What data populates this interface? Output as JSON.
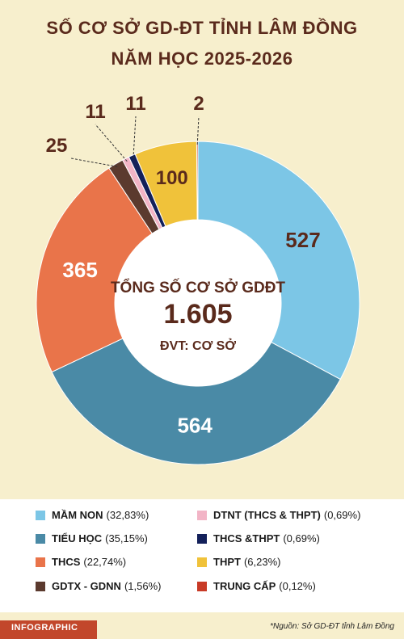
{
  "header": {
    "title_line1": "SỐ CƠ SỞ GD-ĐT TỈNH LÂM ĐỒNG",
    "title_line2": "NĂM HỌC 2025-2026"
  },
  "center": {
    "label": "TỔNG SỐ CƠ SỞ GDĐT",
    "total": "1.605",
    "unit": "ĐVT: CƠ SỞ"
  },
  "chart_data": {
    "type": "pie",
    "donut": true,
    "total": 1605,
    "slices": [
      {
        "name": "MẦM NON",
        "value": 527,
        "pct_label": "(32,83%)",
        "color": "#7cc6e6",
        "label_color": "#5a2a1c"
      },
      {
        "name": "TIỂU HỌC",
        "value": 564,
        "pct_label": "(35,15%)",
        "color": "#4a8aa6",
        "label_color": "#ffffff"
      },
      {
        "name": "THCS",
        "value": 365,
        "pct_label": "(22,74%)",
        "color": "#e9744a",
        "label_color": "#ffffff"
      },
      {
        "name": "GDTX - GDNN",
        "value": 25,
        "pct_label": "(1,56%)",
        "color": "#5b3a2e",
        "label_color": "#5a2a1c"
      },
      {
        "name": "DTNT (THCS & THPT)",
        "value": 11,
        "pct_label": "(0,69%)",
        "color": "#f2b4c6",
        "label_color": "#5a2a1c"
      },
      {
        "name": "THCS &THPT",
        "value": 11,
        "pct_label": "(0,69%)",
        "color": "#13205a",
        "label_color": "#5a2a1c"
      },
      {
        "name": "THPT",
        "value": 100,
        "pct_label": "(6,23%)",
        "color": "#f0c23a",
        "label_color": "#5a2a1c"
      },
      {
        "name": "TRUNG CẤP",
        "value": 2,
        "pct_label": "(0,12%)",
        "color": "#c83a26",
        "label_color": "#5a2a1c"
      }
    ]
  },
  "footer": {
    "tag": "INFOGRAPHIC",
    "source": "*Nguồn: Sở GD-ĐT tỉnh Lâm Đồng"
  }
}
